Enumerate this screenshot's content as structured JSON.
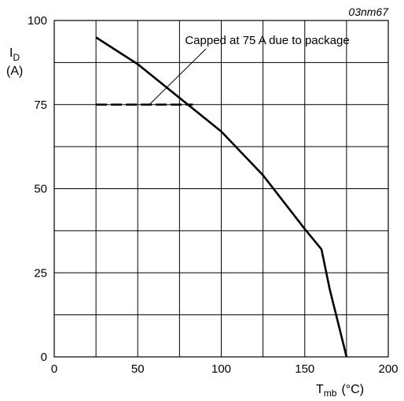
{
  "chart_data": {
    "type": "line",
    "figure_code": "03nm67",
    "ylabel": {
      "main": "I",
      "sub": "D",
      "unit": "(A)"
    },
    "xlabel": {
      "main": "T",
      "sub": "mb",
      "unit": "(°C)"
    },
    "xlim": [
      0,
      200
    ],
    "ylim": [
      0,
      100
    ],
    "x_ticks": [
      0,
      50,
      100,
      150,
      200
    ],
    "y_ticks": [
      0,
      25,
      50,
      75,
      100
    ],
    "grid": true,
    "series": [
      {
        "style": "solid",
        "x": [
          25,
          50,
          75,
          100,
          125,
          150,
          160,
          165,
          170,
          175
        ],
        "y": [
          95,
          87,
          77,
          67,
          54,
          38,
          32,
          20,
          10,
          0
        ]
      },
      {
        "style": "dashed",
        "x": [
          25,
          83
        ],
        "y": [
          75,
          75
        ]
      }
    ],
    "annotation": {
      "text": "Capped at 75 A due to package",
      "point": [
        57,
        75
      ]
    }
  }
}
